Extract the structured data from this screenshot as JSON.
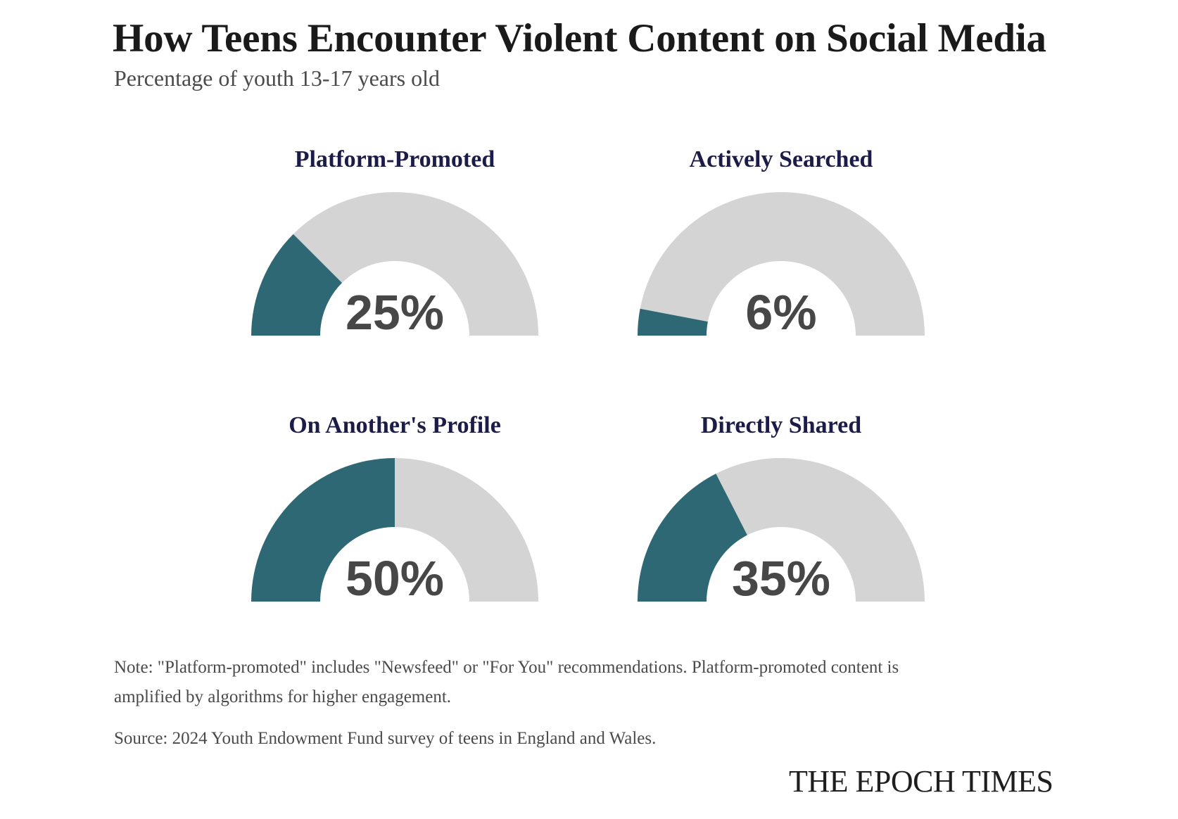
{
  "header": {
    "title": "How Teens Encounter Violent Content on Social Media",
    "subtitle": "Percentage of youth 13-17 years old"
  },
  "footer": {
    "note": "Note: \"Platform-promoted\" includes \"Newsfeed\" or \"For You\" recommendations. Platform-promoted content is amplified by algorithms for higher engagement.",
    "source": "Source: 2024 Youth Endowment Fund survey of teens in England and Wales.",
    "logo": "THE EPOCH TIMES"
  },
  "colors": {
    "filled": "#2e6874",
    "remainder": "#d4d4d4",
    "label": "#1c1c48",
    "value_text": "#474747"
  },
  "chart_data": {
    "type": "pie",
    "subtype": "half-donut gauge",
    "title": "How Teens Encounter Violent Content on Social Media",
    "subtitle": "Percentage of youth 13-17 years old",
    "range": [
      0,
      100
    ],
    "unit": "%",
    "gauges": [
      {
        "label": "Platform-Promoted",
        "value": 25,
        "display": "25%"
      },
      {
        "label": "Actively Searched",
        "value": 6,
        "display": "6%"
      },
      {
        "label": "On Another's Profile",
        "value": 50,
        "display": "50%"
      },
      {
        "label": "Directly Shared",
        "value": 35,
        "display": "35%"
      }
    ]
  }
}
